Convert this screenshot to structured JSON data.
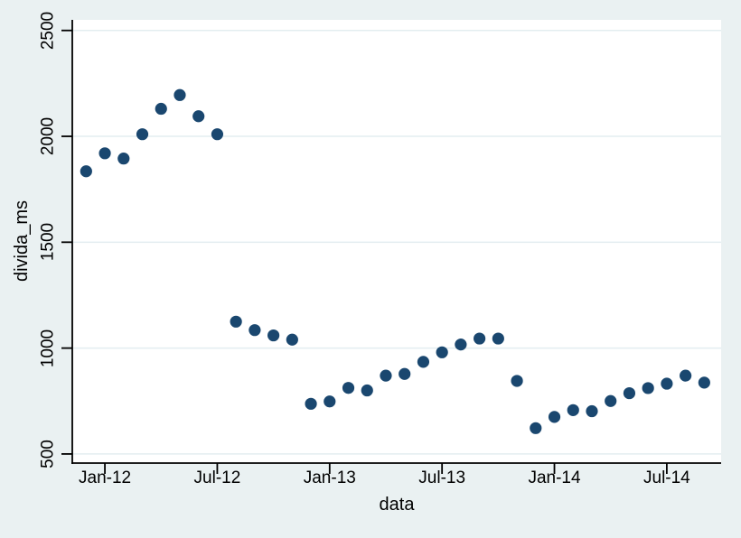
{
  "graph": {
    "background_color": "#eaf1f2",
    "plot_background_color": "#ffffff",
    "grid_color": "#e3edf0",
    "axis_color": "#000000",
    "marker_color": "#1a476f"
  },
  "chart_data": {
    "type": "scatter",
    "title": "",
    "xlabel": "data",
    "ylabel": "divida_ms",
    "x": [
      "Dec-11",
      "Jan-12",
      "Feb-12",
      "Mar-12",
      "Apr-12",
      "May-12",
      "Jun-12",
      "Jul-12",
      "Aug-12",
      "Sep-12",
      "Oct-12",
      "Nov-12",
      "Dec-12",
      "Jan-13",
      "Feb-13",
      "Mar-13",
      "Apr-13",
      "May-13",
      "Jun-13",
      "Jul-13",
      "Aug-13",
      "Sep-13",
      "Oct-13",
      "Nov-13",
      "Dec-13",
      "Jan-14",
      "Feb-14",
      "Mar-14",
      "Apr-14",
      "May-14",
      "Jun-14",
      "Jul-14",
      "Aug-14",
      "Sep-14"
    ],
    "values": [
      1835,
      1920,
      1895,
      2010,
      2130,
      2195,
      2095,
      2010,
      1125,
      1085,
      1060,
      1040,
      737,
      748,
      812,
      800,
      870,
      878,
      935,
      980,
      1017,
      1045,
      1045,
      845,
      622,
      675,
      707,
      702,
      750,
      787,
      811,
      832,
      870,
      837
    ],
    "x_tick_labels": [
      "Jan-12",
      "Jul-12",
      "Jan-13",
      "Jul-13",
      "Jan-14",
      "Jul-14"
    ],
    "x_tick_month_indices": [
      1,
      7,
      13,
      19,
      25,
      31
    ],
    "y_ticks": [
      500,
      1000,
      1500,
      2000,
      2500
    ],
    "ylim": [
      457,
      2550
    ],
    "xlim_month_index": [
      -0.74,
      33.9
    ],
    "grid": true,
    "legend": "none",
    "marker": "filled-circle"
  }
}
